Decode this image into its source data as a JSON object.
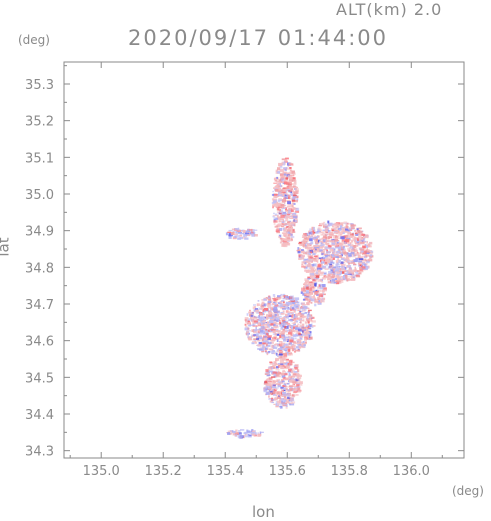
{
  "header": {
    "altitude_label": "ALT(km)  2.0",
    "timestamp": "2020/09/17 01:44:00"
  },
  "chart_data": {
    "type": "heatmap",
    "title": "2020/09/17 01:44:00",
    "xlabel": "lon",
    "ylabel": "lat",
    "x_unit": "(deg)",
    "y_unit": "(deg)",
    "xlim": [
      134.88,
      136.17
    ],
    "ylim": [
      34.28,
      35.36
    ],
    "x_ticks": [
      135.0,
      135.2,
      135.4,
      135.6,
      135.8,
      136.0
    ],
    "y_ticks": [
      34.3,
      34.4,
      34.5,
      34.6,
      34.7,
      34.8,
      34.9,
      35.0,
      35.1,
      35.2,
      35.3
    ],
    "grid": false,
    "colors": {
      "positive": "#e8505a",
      "negative": "#5a5ae8",
      "axis": "#8a8a8a"
    },
    "echo_regions": [
      {
        "lon": [
          135.55,
          135.63
        ],
        "lat": [
          34.86,
          35.1
        ],
        "bias": 0.6
      },
      {
        "lon": [
          135.63,
          135.87
        ],
        "lat": [
          34.76,
          34.93
        ],
        "bias": 0.35
      },
      {
        "lon": [
          135.46,
          135.68
        ],
        "lat": [
          34.56,
          34.73
        ],
        "bias": 0.1
      },
      {
        "lon": [
          135.52,
          135.64
        ],
        "lat": [
          34.42,
          34.56
        ],
        "bias": 0.4
      },
      {
        "lon": [
          135.4,
          135.52
        ],
        "lat": [
          34.34,
          34.36
        ],
        "bias": -0.4
      },
      {
        "lon": [
          135.4,
          135.5
        ],
        "lat": [
          34.88,
          34.91
        ],
        "bias": -0.3
      },
      {
        "lon": [
          135.64,
          135.72
        ],
        "lat": [
          34.7,
          34.78
        ],
        "bias": 0.5
      }
    ]
  }
}
